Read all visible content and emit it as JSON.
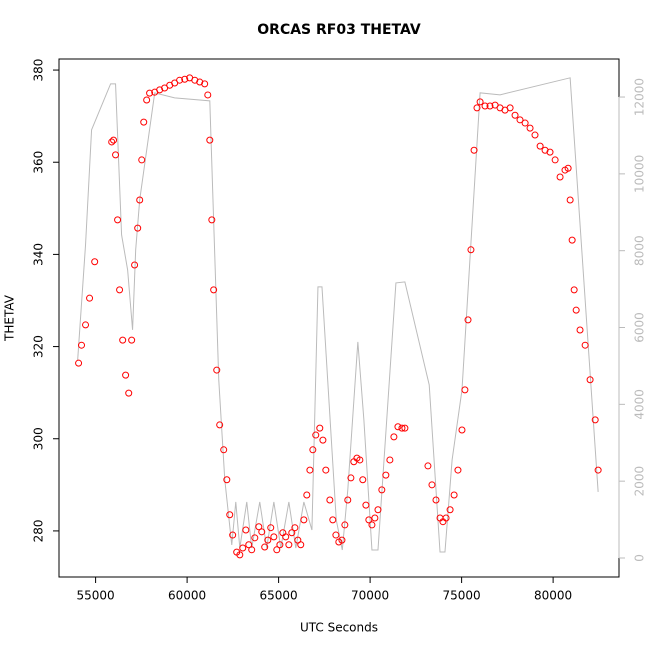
{
  "chart_data": {
    "type": "scatter",
    "title": "ORCAS RF03 THETAV",
    "x_label": "UTC Seconds",
    "y_label": "THETAV",
    "xlim": [
      53000,
      83600
    ],
    "ylim": [
      270,
      382.4
    ],
    "y2lim": [
      -495,
      12990
    ],
    "xticks": [
      55000,
      60000,
      65000,
      70000,
      75000,
      80000
    ],
    "yticks": [
      280,
      300,
      320,
      340,
      360,
      380
    ],
    "y2ticks": [
      0,
      2000,
      4000,
      6000,
      8000,
      10000,
      12000
    ],
    "y2_color": "#bbbbbb",
    "series": [
      {
        "style": "line",
        "axis": "y2",
        "color": "#bbbbbb",
        "x": [
          54020,
          54450,
          54780,
          55820,
          56090,
          56420,
          56750,
          57020,
          57190,
          57410,
          58230,
          59320,
          61240,
          61730,
          62060,
          62440,
          62660,
          62880,
          63260,
          63530,
          63970,
          64350,
          64740,
          65120,
          65560,
          65940,
          66380,
          66820,
          67150,
          67370,
          68150,
          68480,
          68780,
          69330,
          69660,
          70100,
          70430,
          71410,
          71900,
          73230,
          73820,
          74090,
          74480,
          75020,
          76010,
          77100,
          80930,
          82460
        ],
        "values": [
          5156,
          8151,
          11146,
          12344,
          12344,
          8411,
          7500,
          5938,
          8021,
          9323,
          12109,
          11979,
          11901,
          4635,
          2031,
          339,
          1458,
          260,
          1458,
          260,
          1458,
          260,
          1458,
          260,
          1458,
          260,
          1458,
          729,
          7057,
          7057,
          990,
          208,
          1771,
          5625,
          3594,
          208,
          208,
          7161,
          7188,
          4505,
          156,
          156,
          2552,
          4375,
          12109,
          12057,
          12500,
          1719
        ]
      },
      {
        "style": "points",
        "color": "#ff0000",
        "x": [
          54070,
          54230,
          54450,
          54670,
          54950,
          55880,
          55980,
          56090,
          56200,
          56310,
          56480,
          56640,
          56810,
          56970,
          57130,
          57300,
          57410,
          57520,
          57630,
          57790,
          57950,
          58230,
          58500,
          58770,
          59050,
          59320,
          59590,
          59870,
          60140,
          60420,
          60690,
          60960,
          61130,
          61240,
          61350,
          61450,
          61620,
          61780,
          62000,
          62170,
          62330,
          62490,
          62710,
          62880,
          63040,
          63210,
          63370,
          63530,
          63700,
          63920,
          64080,
          64240,
          64410,
          64570,
          64740,
          64900,
          65070,
          65230,
          65390,
          65560,
          65720,
          65890,
          66050,
          66210,
          66380,
          66540,
          66710,
          66870,
          67030,
          67250,
          67420,
          67580,
          67800,
          67960,
          68130,
          68290,
          68460,
          68620,
          68780,
          68950,
          69110,
          69280,
          69440,
          69600,
          69770,
          69930,
          70100,
          70260,
          70430,
          70640,
          70860,
          71080,
          71300,
          71520,
          71740,
          71900,
          73160,
          73380,
          73600,
          73820,
          73980,
          74150,
          74370,
          74590,
          74800,
          75020,
          75180,
          75350,
          75510,
          75680,
          75840,
          76010,
          76280,
          76550,
          76830,
          77100,
          77370,
          77650,
          77920,
          78190,
          78470,
          78740,
          79010,
          79290,
          79560,
          79830,
          80110,
          80380,
          80650,
          80820,
          80930,
          81040,
          81150,
          81260,
          81470,
          81750,
          82020,
          82300,
          82460
        ],
        "values": [
          316.4,
          320.3,
          324.7,
          330.5,
          338.4,
          364.4,
          364.8,
          361.6,
          347.5,
          332.3,
          321.4,
          313.8,
          309.9,
          321.4,
          337.7,
          345.7,
          351.8,
          360.5,
          368.7,
          373.5,
          375.0,
          375.2,
          375.7,
          376.1,
          376.7,
          377.2,
          377.8,
          378.0,
          378.3,
          377.8,
          377.4,
          377.0,
          374.6,
          364.8,
          347.5,
          332.3,
          314.9,
          303.0,
          297.6,
          291.1,
          283.5,
          279.1,
          275.4,
          274.8,
          276.3,
          280.2,
          277.0,
          275.9,
          278.5,
          280.9,
          279.8,
          276.5,
          278.0,
          280.7,
          278.7,
          275.9,
          277.0,
          279.6,
          278.7,
          277.0,
          279.6,
          280.7,
          278.0,
          277.0,
          282.4,
          287.8,
          293.2,
          297.6,
          300.8,
          302.3,
          299.7,
          293.2,
          286.7,
          282.4,
          279.1,
          277.6,
          278.0,
          281.3,
          286.7,
          291.5,
          295.0,
          295.8,
          295.4,
          291.1,
          285.6,
          282.4,
          281.3,
          282.8,
          284.6,
          288.9,
          292.1,
          295.4,
          300.4,
          302.6,
          302.3,
          302.3,
          294.1,
          290.0,
          286.7,
          282.8,
          282.0,
          282.8,
          284.6,
          287.8,
          293.2,
          301.9,
          310.6,
          325.8,
          341.0,
          362.6,
          371.8,
          373.1,
          372.2,
          372.2,
          372.4,
          371.8,
          371.3,
          371.8,
          370.2,
          369.2,
          368.5,
          367.4,
          365.9,
          363.5,
          362.6,
          362.2,
          360.5,
          356.8,
          358.3,
          358.7,
          351.8,
          343.1,
          332.3,
          327.9,
          323.6,
          320.3,
          312.8,
          304.1,
          293.2
        ]
      }
    ]
  }
}
